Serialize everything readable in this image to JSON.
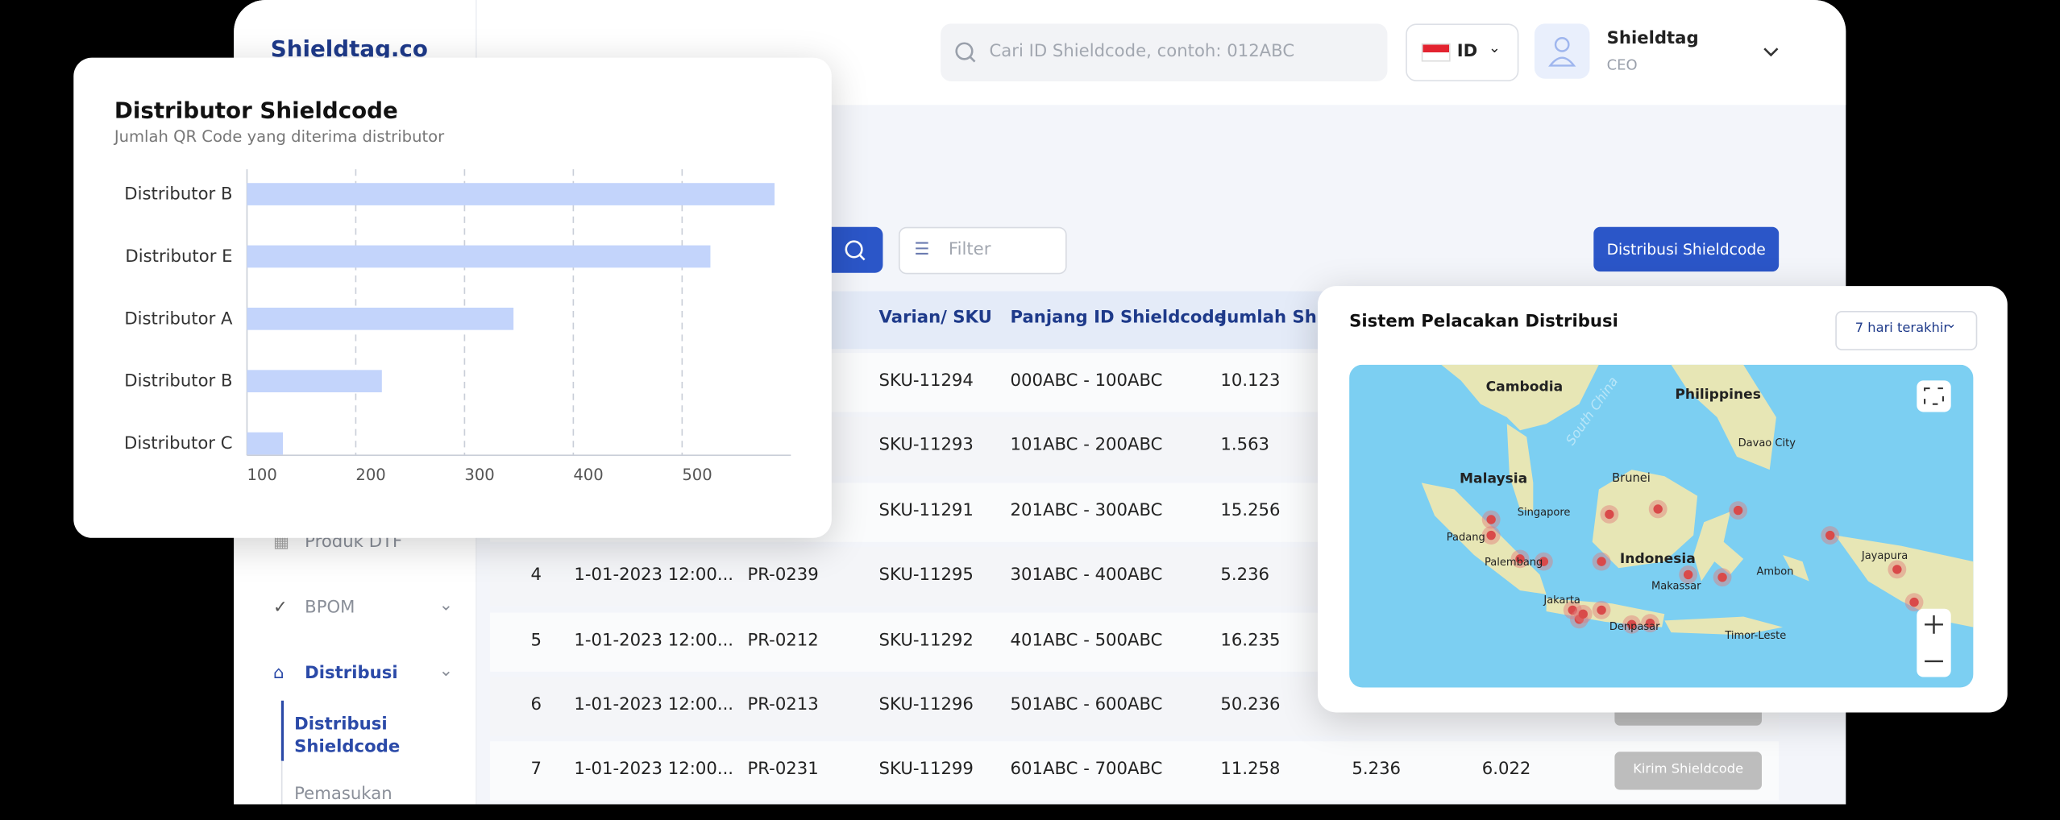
{
  "header": {
    "logo": "Shieldtag.co",
    "search_placeholder": "Cari ID Shieldcode, contoh: 012ABC",
    "language": "ID",
    "user_name": "Shieldtag",
    "user_role": "CEO"
  },
  "sidebar": {
    "items": [
      "Produk DTF",
      "BPOM",
      "Distribusi"
    ],
    "subitems": [
      "Distribusi Shieldcode",
      "Pemasukan"
    ]
  },
  "toolbar": {
    "filter": "Filter",
    "primary_button": "Distribusi Shieldcode"
  },
  "table": {
    "columns": [
      "Varian/ SKU",
      "Panjang ID Shieldcode",
      "Jumlah Shieldcode"
    ],
    "rows": [
      {
        "sku": "SKU-11294",
        "range": "000ABC - 100ABC",
        "count": "10.123"
      },
      {
        "sku": "SKU-11293",
        "range": "101ABC - 200ABC",
        "count": "1.563"
      },
      {
        "sku": "SKU-11291",
        "range": "201ABC - 300ABC",
        "count": "15.256"
      },
      {
        "no": "4",
        "date": "1-01-2023  12:00...",
        "id": "PR-0239",
        "sku": "SKU-11295",
        "range": "301ABC - 400ABC",
        "count": "5.236"
      },
      {
        "no": "5",
        "date": "1-01-2023  12:00...",
        "id": "PR-0212",
        "sku": "SKU-11292",
        "range": "401ABC - 500ABC",
        "count": "16.235"
      },
      {
        "no": "6",
        "date": "1-01-2023  12:00...",
        "id": "PR-0213",
        "sku": "SKU-11296",
        "range": "501ABC - 600ABC",
        "count": "50.236"
      },
      {
        "no": "7",
        "date": "1-01-2023  12:00...",
        "id": "PR-0231",
        "sku": "SKU-11299",
        "range": "601ABC - 700ABC",
        "count": "11.258",
        "sent": "5.236",
        "rest": "6.022",
        "action": "Kirim Shieldcode"
      }
    ]
  },
  "bar_chart": {
    "type": "bar",
    "orientation": "horizontal",
    "title": "Distributor Shieldcode",
    "subtitle": "Jumlah QR Code yang diterima distributor",
    "categories": [
      "Distributor B",
      "Distributor E",
      "Distributor A",
      "Distributor B",
      "Distributor C"
    ],
    "values": [
      585,
      526,
      345,
      224,
      133
    ],
    "color": "#c3d4fb",
    "xlim": [
      100,
      600
    ],
    "xticks": [
      100,
      200,
      300,
      400,
      500
    ],
    "grid": true
  },
  "map_card": {
    "title": "Sistem Pelacakan Distribusi",
    "range": "7 hari terakhir",
    "labels": [
      "Cambodia",
      "Philippines",
      "South China",
      "Davao City",
      "Malaysia",
      "Brunei",
      "Singapore",
      "Padang",
      "Palembang",
      "Indonesia",
      "Makassar",
      "Ambon",
      "Jayapura",
      "Jakarta",
      "Denpasar",
      "Timor-Leste"
    ]
  }
}
